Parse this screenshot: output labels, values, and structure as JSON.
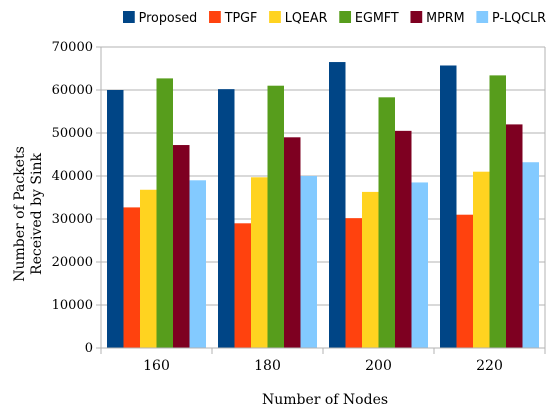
{
  "chart_data": {
    "type": "bar",
    "title": "",
    "xlabel": "Number of Nodes",
    "ylabel_line1": "Number of Packets",
    "ylabel_line2": "Received by Sink",
    "categories": [
      "160",
      "180",
      "200",
      "220"
    ],
    "ylim": [
      0,
      70000
    ],
    "yticks": [
      0,
      10000,
      20000,
      30000,
      40000,
      50000,
      60000,
      70000
    ],
    "grid": true,
    "legend_position": "top",
    "series": [
      {
        "name": "Proposed",
        "color": "#004586",
        "values": [
          60000,
          60200,
          66500,
          65700
        ]
      },
      {
        "name": "TPGF",
        "color": "#ff420e",
        "values": [
          32700,
          29000,
          30200,
          31000
        ]
      },
      {
        "name": "LQEAR",
        "color": "#ffd320",
        "values": [
          36800,
          39700,
          36300,
          41000
        ]
      },
      {
        "name": "EGMFT",
        "color": "#579d1c",
        "values": [
          62700,
          61000,
          58300,
          63400
        ]
      },
      {
        "name": "MPRM",
        "color": "#7e0021",
        "values": [
          47200,
          49000,
          50500,
          52000
        ]
      },
      {
        "name": "P-LQCLR",
        "color": "#83caff",
        "values": [
          39000,
          40000,
          38500,
          43200
        ]
      }
    ]
  }
}
